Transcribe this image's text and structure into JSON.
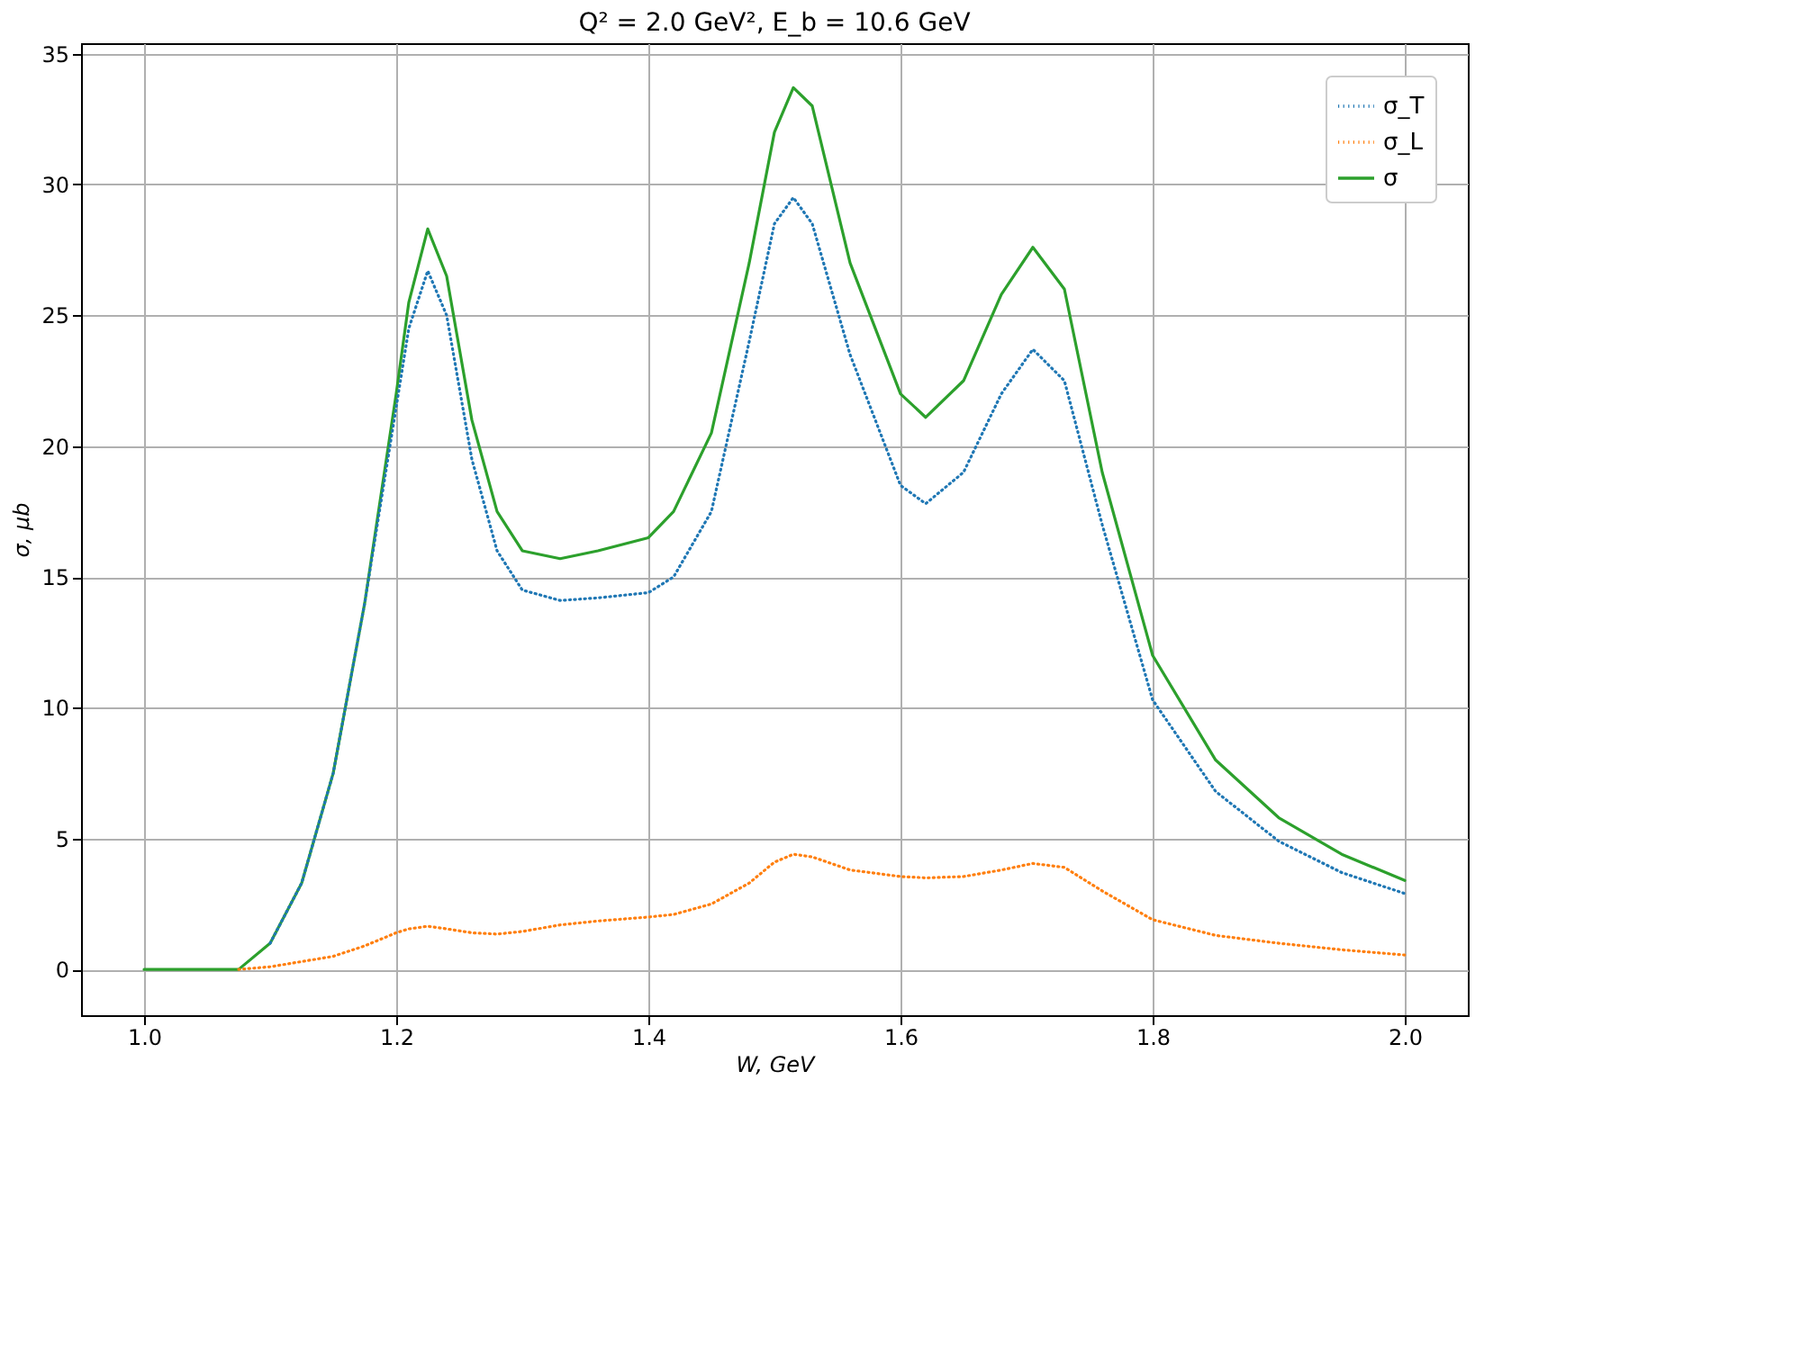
{
  "chart_data": {
    "type": "line",
    "title": "Q² = 2.0 GeV²,  E_b = 10.6 GeV",
    "xlabel": "W, GeV",
    "ylabel": "σ, μb",
    "x": [
      1.0,
      1.05,
      1.075,
      1.1,
      1.125,
      1.15,
      1.175,
      1.2,
      1.21,
      1.225,
      1.24,
      1.26,
      1.28,
      1.3,
      1.33,
      1.36,
      1.4,
      1.42,
      1.45,
      1.48,
      1.5,
      1.515,
      1.53,
      1.56,
      1.6,
      1.62,
      1.65,
      1.68,
      1.705,
      1.73,
      1.76,
      1.8,
      1.85,
      1.9,
      1.95,
      2.0
    ],
    "series": [
      {
        "name": "σ_T",
        "color": "#1f77b4",
        "line_style": "dotted",
        "values": [
          null,
          null,
          null,
          1.0,
          3.3,
          7.5,
          14,
          21.5,
          24.5,
          26.7,
          25,
          19.5,
          16,
          14.5,
          14.1,
          14.2,
          14.4,
          15,
          17.5,
          24,
          28.5,
          29.5,
          28.5,
          23.5,
          18.5,
          17.8,
          19,
          22,
          23.7,
          22.5,
          17,
          10.3,
          6.8,
          4.9,
          3.7,
          2.9
        ]
      },
      {
        "name": "σ_L",
        "color": "#ff7f0e",
        "line_style": "dotted",
        "values": [
          null,
          null,
          0,
          0.1,
          0.3,
          0.5,
          0.9,
          1.4,
          1.55,
          1.65,
          1.55,
          1.4,
          1.35,
          1.45,
          1.7,
          1.85,
          2.0,
          2.1,
          2.5,
          3.3,
          4.1,
          4.4,
          4.3,
          3.8,
          3.55,
          3.5,
          3.55,
          3.8,
          4.05,
          3.9,
          3.0,
          1.9,
          1.3,
          1.0,
          0.75,
          0.55
        ]
      },
      {
        "name": "σ",
        "color": "#2ca02c",
        "line_style": "solid",
        "values": [
          0,
          0,
          0,
          1.0,
          3.3,
          7.5,
          14,
          22,
          25.5,
          28.3,
          26.5,
          21,
          17.5,
          16.0,
          15.7,
          16.0,
          16.5,
          17.5,
          20.5,
          27,
          32,
          33.7,
          33,
          27,
          22,
          21.1,
          22.5,
          25.8,
          27.6,
          26,
          19,
          12,
          8,
          5.8,
          4.4,
          3.4
        ]
      }
    ],
    "xlim": [
      0.95,
      2.05
    ],
    "xticks": [
      {
        "value": 1.0,
        "label": "1.0"
      },
      {
        "value": 1.2,
        "label": "1.2"
      },
      {
        "value": 1.4,
        "label": "1.4"
      },
      {
        "value": 1.6,
        "label": "1.6"
      },
      {
        "value": 1.8,
        "label": "1.8"
      },
      {
        "value": 2.0,
        "label": "2.0"
      }
    ],
    "ylim": [
      -1.75,
      35.4
    ],
    "yticks": [
      0,
      5,
      10,
      15,
      20,
      25,
      30,
      35
    ],
    "grid": true,
    "legend": "top right"
  }
}
